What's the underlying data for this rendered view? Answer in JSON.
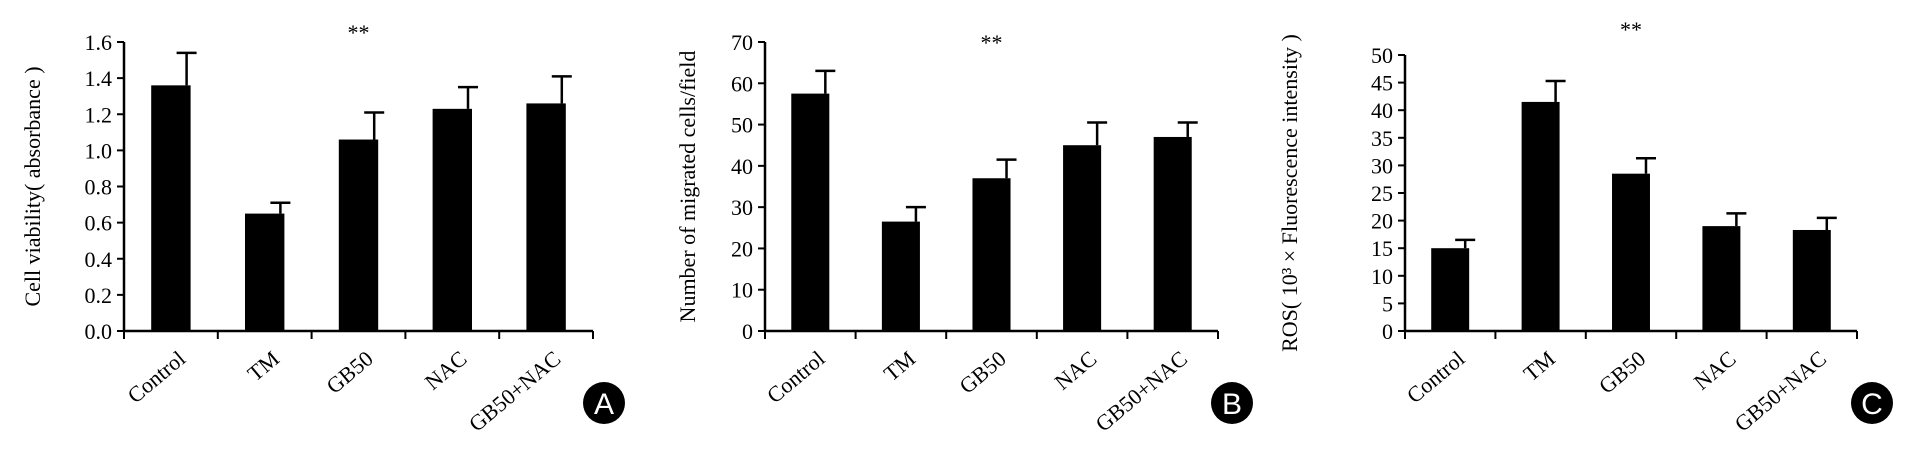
{
  "chart_data": [
    {
      "type": "bar",
      "panel_label": "A",
      "categories": [
        "Control",
        "TM",
        "GB50",
        "NAC",
        "GB50+NAC"
      ],
      "values": [
        1.36,
        0.65,
        1.06,
        1.23,
        1.26
      ],
      "errors": [
        0.18,
        0.06,
        0.15,
        0.12,
        0.15
      ],
      "ylabel": "Cell viability( absorbance )",
      "ylim": [
        0,
        1.6
      ],
      "yticks": [
        "0.0",
        "0.2",
        "0.4",
        "0.6",
        "0.8",
        "1.0",
        "1.2",
        "1.4",
        "1.6"
      ],
      "significance": "**",
      "bar_color": "#000000"
    },
    {
      "type": "bar",
      "panel_label": "B",
      "categories": [
        "Control",
        "TM",
        "GB50",
        "NAC",
        "GB50+NAC"
      ],
      "values": [
        57.5,
        26.5,
        37,
        45,
        47
      ],
      "errors": [
        5.5,
        3.5,
        4.5,
        5.5,
        3.5
      ],
      "ylabel": "Number of migrated cells/field",
      "ylim": [
        0,
        70
      ],
      "yticks": [
        "0",
        "10",
        "20",
        "30",
        "40",
        "50",
        "60",
        "70"
      ],
      "significance": "**",
      "bar_color": "#000000"
    },
    {
      "type": "bar",
      "panel_label": "C",
      "categories": [
        "Control",
        "TM",
        "GB50",
        "NAC",
        "GB50+NAC"
      ],
      "values": [
        15,
        41.5,
        28.5,
        19,
        18.3
      ],
      "errors": [
        1.5,
        3.8,
        2.8,
        2.3,
        2.2
      ],
      "ylabel": "ROS( 10³ × Fluorescence intensity )",
      "ylim": [
        0,
        50
      ],
      "yticks": [
        "0",
        "5",
        "10",
        "15",
        "20",
        "25",
        "30",
        "35",
        "40",
        "45",
        "50"
      ],
      "significance": "**",
      "bar_color": "#000000"
    }
  ]
}
